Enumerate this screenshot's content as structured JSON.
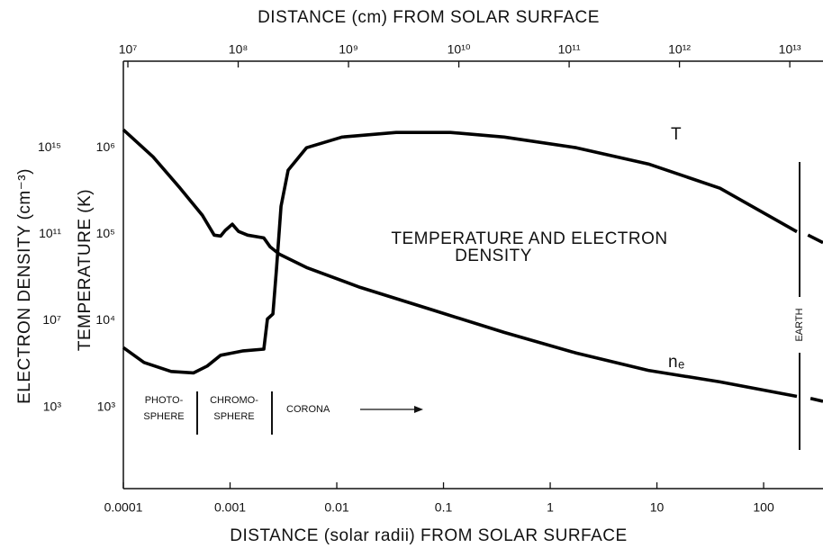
{
  "chart_data": {
    "type": "line",
    "x_label": "DISTANCE (solar radii) FROM SOLAR SURFACE",
    "x2_label": "DISTANCE (cm) FROM SOLAR SURFACE",
    "y_label": "TEMPERATURE (K)",
    "y2_label": "ELECTRON DENSITY (cm⁻³)",
    "xscale": "log",
    "yscale": "log",
    "xlim": [
      0.0001,
      360
    ],
    "xticks": [
      0.0001,
      0.001,
      0.01,
      0.1,
      1,
      10,
      100
    ],
    "x2lim": [
      9100000.0,
      20000000000000.0
    ],
    "x2ticks": [
      {
        "value": 10000000.0,
        "label": "10⁷"
      },
      {
        "value": 100000000.0,
        "label": "10⁸"
      },
      {
        "value": 1000000000.0,
        "label": "10⁹"
      },
      {
        "value": 10000000000.0,
        "label": "10¹⁰"
      },
      {
        "value": 100000000000.0,
        "label": "10¹¹"
      },
      {
        "value": 1000000000000.0,
        "label": "10¹²"
      },
      {
        "value": 10000000000000.0,
        "label": "10¹³"
      }
    ],
    "ylim": [
      115,
      10000000.0
    ],
    "yticks": [
      {
        "value": 1000,
        "label": "10³"
      },
      {
        "value": 10000,
        "label": "10⁴"
      },
      {
        "value": 100000,
        "label": "10⁵"
      },
      {
        "value": 1000000,
        "label": "10⁶"
      }
    ],
    "y2lim": [
      0.175,
      1e+19
    ],
    "y2ticks": [
      {
        "value": 1000.0,
        "label": "10³"
      },
      {
        "value": 10000000.0,
        "label": "10⁷"
      },
      {
        "value": 100000000000.0,
        "label": "10¹¹"
      },
      {
        "value": 1000000000000000.0,
        "label": "10¹⁵"
      }
    ],
    "grid": false,
    "series": [
      {
        "name": "T",
        "color": "#000000",
        "axis": "y",
        "x": [
          0.0001,
          0.000156,
          0.00028,
          0.000455,
          0.00061,
          0.000815,
          0.00133,
          0.00207,
          0.00224,
          0.00252,
          0.00272,
          0.003,
          0.0035,
          0.0052,
          0.0112,
          0.036,
          0.116,
          0.37,
          1.76,
          8.3,
          39,
          205,
          230,
          260,
          360
        ],
        "values": [
          4900.0,
          3300.0,
          2600.0,
          2500.0,
          3000.0,
          4000.0,
          4500.0,
          4700.0,
          10500.0,
          12000.0,
          39000.0,
          210000.0,
          550000.0,
          1000000.0,
          1330000.0,
          1500000.0,
          1500000.0,
          1330000.0,
          1000000.0,
          650000.0,
          340000.0,
          107000.0,
          null,
          98000.0,
          80000.0
        ]
      },
      {
        "name": "nₑ",
        "color": "#000000",
        "axis": "y2",
        "x": [
          0.0001,
          0.00019,
          0.00034,
          0.00055,
          0.00071,
          0.000815,
          0.0009,
          0.00105,
          0.0012,
          0.00146,
          0.00207,
          0.00238,
          0.0029,
          0.0052,
          0.0166,
          0.0785,
          0.37,
          1.76,
          8.3,
          39,
          205,
          230,
          275,
          360
        ],
        "values": [
          6800000000000000.0,
          380000000000000.0,
          13500000000000.0,
          760000000000.0,
          91000000000.0,
          83000000000.0,
          150000000000.0,
          290000000000.0,
          135000000000.0,
          91000000000.0,
          68000000000.0,
          26000000000.0,
          12000000000.0,
          2900000000.0,
          350000000.0,
          32000000.0,
          2900000.0,
          320000.0,
          51000.0,
          15000.0,
          3200.0,
          null,
          2600.0,
          1900.0
        ]
      }
    ],
    "annotations": [
      "TEMPERATURE AND ELECTRON",
      "DENSITY"
    ],
    "region_labels": [
      [
        "PHOTO-",
        "SPHERE"
      ],
      [
        "CHROMO-",
        "SPHERE"
      ],
      [
        "CORONA"
      ]
    ],
    "earth_label": "EARTH"
  }
}
